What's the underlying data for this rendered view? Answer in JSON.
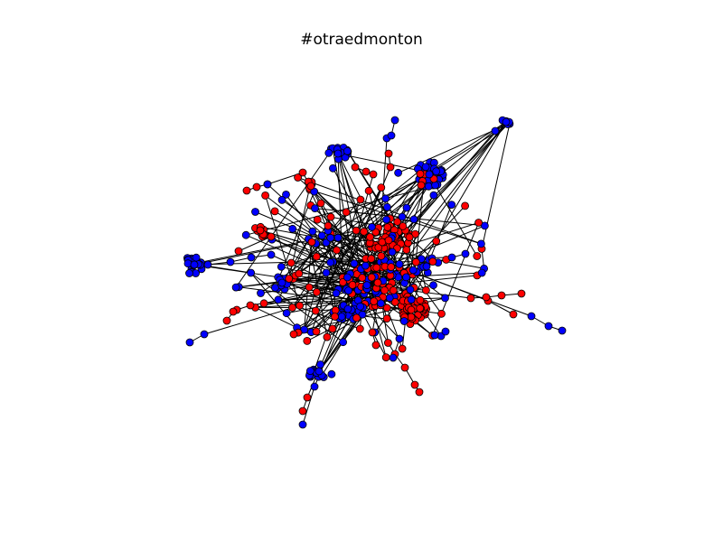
{
  "figure": {
    "title": "#otraedmonton",
    "colors": {
      "node_red": "#ff0000",
      "node_blue": "#0000ff",
      "node_edge": "#000000",
      "edge": "#000000",
      "background": "#ffffff"
    }
  }
}
